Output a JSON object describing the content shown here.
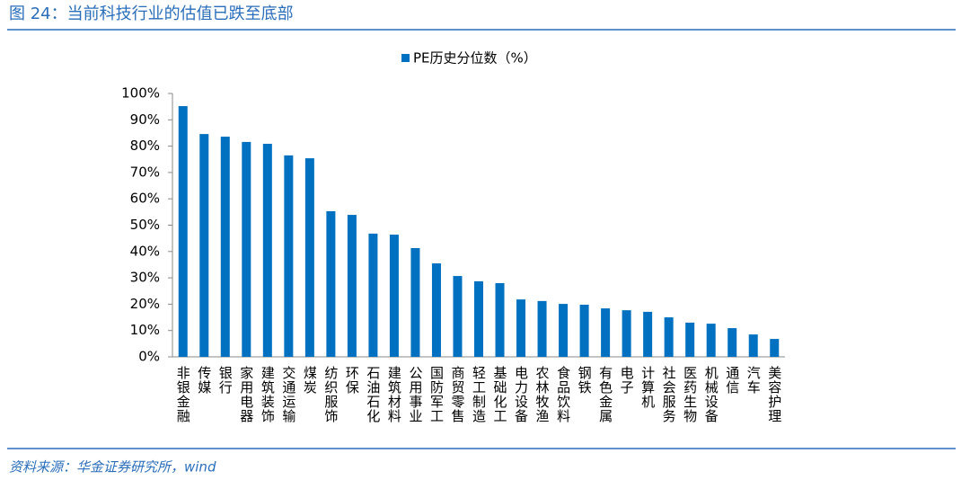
{
  "chart_data": {
    "type": "bar",
    "title": "图 24：当前科技行业的估值已跌至底部",
    "source": "资料来源：华金证券研究所，wind",
    "categories": [
      "非银金融",
      "传媒",
      "银行",
      "家用电器",
      "建筑装饰",
      "交通运输",
      "煤炭",
      "纺织服饰",
      "环保",
      "石油石化",
      "建筑材料",
      "公用事业",
      "国防军工",
      "商贸零售",
      "轻工制造",
      "基础化工",
      "电力设备",
      "农林牧渔",
      "食品饮料",
      "钢铁",
      "有色金属",
      "电子",
      "计算机",
      "社会服务",
      "医药生物",
      "机械设备",
      "通信",
      "汽车",
      "美容护理"
    ],
    "series": [
      {
        "name": "PE历史分位数（%）",
        "color": "#0070c0",
        "values": [
          95.2,
          84.6,
          83.6,
          81.6,
          80.9,
          76.5,
          75.4,
          55.3,
          53.9,
          46.8,
          46.4,
          41.3,
          35.5,
          30.7,
          28.7,
          28.0,
          21.8,
          21.2,
          20.1,
          19.8,
          18.4,
          17.7,
          17.1,
          15.0,
          13.0,
          12.6,
          10.9,
          8.5,
          6.8
        ]
      }
    ],
    "ylim": [
      0,
      100
    ],
    "yticks": [
      {
        "value": 0,
        "label": "0%"
      },
      {
        "value": 10,
        "label": "10%"
      },
      {
        "value": 20,
        "label": "20%"
      },
      {
        "value": 30,
        "label": "30%"
      },
      {
        "value": 40,
        "label": "40%"
      },
      {
        "value": 50,
        "label": "50%"
      },
      {
        "value": 60,
        "label": "60%"
      },
      {
        "value": 70,
        "label": "70%"
      },
      {
        "value": 80,
        "label": "80%"
      },
      {
        "value": 90,
        "label": "90%"
      },
      {
        "value": 100,
        "label": "100%"
      }
    ],
    "grid": false,
    "legend": "top"
  }
}
